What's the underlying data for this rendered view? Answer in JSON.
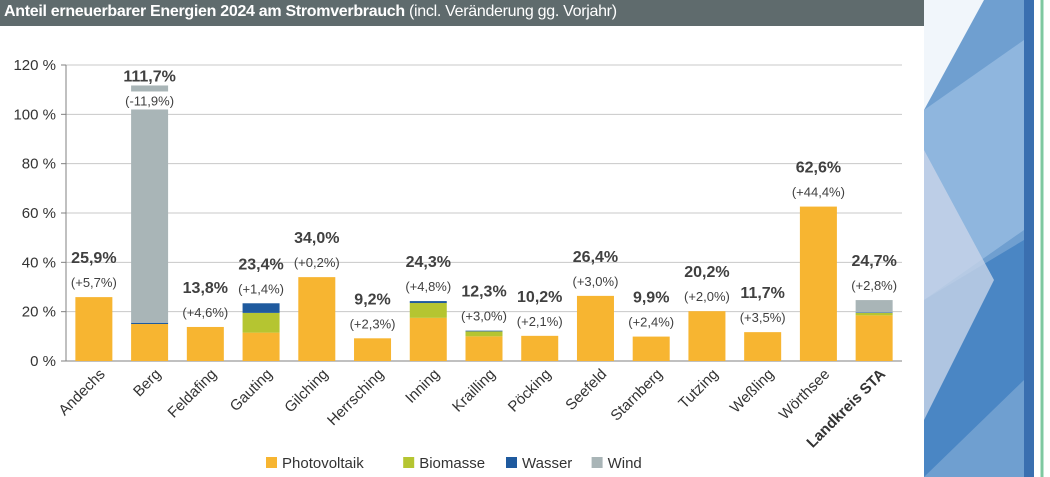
{
  "header": {
    "title_bold": "Anteil erneuerbarer Energien 2024 am Stromverbrauch",
    "title_normal": " (incl. Veränderung gg. Vorjahr)"
  },
  "colors": {
    "header_bg": "#5f6b6d",
    "Photovoltaik": "#f7b531",
    "Biomasse": "#b5c531",
    "Wasser": "#1f5a9e",
    "Wind": "#a9b5b7",
    "highlight_label": "#1f5a9e"
  },
  "chart_data": {
    "type": "bar",
    "stacked": true,
    "title": "Anteil erneuerbarer Energien 2024 am Stromverbrauch (incl. Veränderung gg. Vorjahr)",
    "categories": [
      "Andechs",
      "Berg",
      "Feldafing",
      "Gauting",
      "Gilching",
      "Herrsching",
      "Inning",
      "Krailling",
      "Pöcking",
      "Seefeld",
      "Starnberg",
      "Tutzing",
      "Weßling",
      "Wörthsee",
      "Landkreis STA"
    ],
    "highlight_category": "Landkreis STA",
    "series": [
      {
        "name": "Photovoltaik",
        "values": [
          25.9,
          15.0,
          13.8,
          11.5,
          34.0,
          9.2,
          17.5,
          10.0,
          10.2,
          26.4,
          9.9,
          20.2,
          11.7,
          62.6,
          18.5
        ]
      },
      {
        "name": "Biomasse",
        "values": [
          0,
          0,
          0,
          8.0,
          0,
          0,
          6.0,
          2.0,
          0,
          0,
          0,
          0,
          0,
          0,
          1.0
        ]
      },
      {
        "name": "Wasser",
        "values": [
          0,
          0.5,
          0,
          3.9,
          0,
          0,
          0.8,
          0.3,
          0,
          0,
          0,
          0,
          0,
          0,
          0.2
        ]
      },
      {
        "name": "Wind",
        "values": [
          0,
          96.2,
          0,
          0,
          0,
          0,
          0,
          0,
          0,
          0,
          0,
          0,
          0,
          0,
          5.0
        ]
      }
    ],
    "totals": [
      "25,9%",
      "111,7%",
      "13,8%",
      "23,4%",
      "34,0%",
      "9,2%",
      "24,3%",
      "12,3%",
      "10,2%",
      "26,4%",
      "9,9%",
      "20,2%",
      "11,7%",
      "62,6%",
      "24,7%"
    ],
    "changes": [
      "(+5,7%)",
      "(-11,9%)",
      "(+4,6%)",
      "(+1,4%)",
      "(+0,2%)",
      "(+2,3%)",
      "(+4,8%)",
      "(+3,0%)",
      "(+2,1%)",
      "(+3,0%)",
      "(+2,4%)",
      "(+2,0%)",
      "(+3,5%)",
      "(+44,4%)",
      "(+2,8%)"
    ],
    "ylim": [
      0,
      120
    ],
    "yticks": [
      0,
      20,
      40,
      60,
      80,
      100,
      120
    ],
    "ytick_labels": [
      "0 %",
      "20 %",
      "40 %",
      "60 %",
      "80 %",
      "100 %",
      "120 %"
    ],
    "grid": true,
    "legend_position": "bottom"
  }
}
